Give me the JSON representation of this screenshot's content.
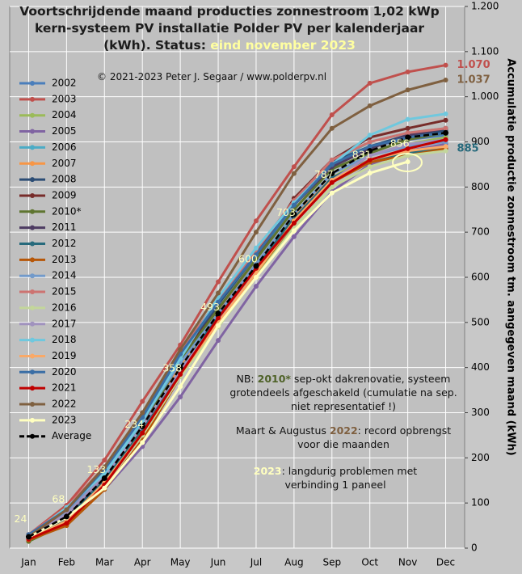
{
  "chart_data": {
    "type": "line",
    "title": "Voortschrijdende maand producties zonnestroom 1,02 kWp kern-systeem PV installatie Polder PV per kalenderjaar (kWh). Status:",
    "status": "eind november 2023",
    "copyright": "© 2021-2023 Peter J. Segaar / www.polderpv.nl",
    "y_axis_label": "Accumulatie productie zonnestroom tm. aangegeven maand (kWh)",
    "y_axis_side": "right",
    "notes": [
      [
        "NB: ",
        "2010*",
        " sep-okt dakrenovatie, systeem grotendeels afgeschakeld (cumulatie na sep. niet representatief !)"
      ],
      [
        "Maart & Augustus ",
        "2022",
        ": record opbrengst voor die maanden"
      ],
      [
        "2023",
        ": langdurig problemen met verbinding 1 paneel"
      ]
    ],
    "categories": [
      "Jan",
      "Feb",
      "Mar",
      "Apr",
      "May",
      "Jun",
      "Jul",
      "Aug",
      "Sep",
      "Oct",
      "Nov",
      "Dec"
    ],
    "ylim": [
      0,
      1200
    ],
    "yticks": [
      0,
      100,
      200,
      300,
      400,
      500,
      600,
      700,
      800,
      900,
      {
        "value": 1000,
        "label": "1.000"
      },
      {
        "value": 1100,
        "label": "1.100"
      },
      {
        "value": 1200,
        "label": "1.200"
      }
    ],
    "grid": true,
    "series": [
      {
        "name": "2002",
        "color": "#4a7ebb",
        "values": [
          22,
          60,
          150,
          280,
          410,
          530,
          640,
          760,
          850,
          890,
          905,
          915
        ]
      },
      {
        "name": "2003",
        "color": "#c0504d",
        "values": [
          30,
          95,
          195,
          325,
          450,
          590,
          725,
          845,
          960,
          1030,
          1055,
          1070
        ],
        "value_labels": [
          null,
          null,
          null,
          null,
          null,
          null,
          null,
          null,
          null,
          null,
          null,
          "1.070"
        ]
      },
      {
        "name": "2004",
        "color": "#9bbb59",
        "values": [
          15,
          55,
          140,
          260,
          390,
          500,
          600,
          720,
          820,
          870,
          895,
          910
        ]
      },
      {
        "name": "2005",
        "color": "#8064a2",
        "values": [
          20,
          60,
          130,
          225,
          335,
          460,
          580,
          690,
          790,
          850,
          880,
          895
        ]
      },
      {
        "name": "2006",
        "color": "#4bacc6",
        "values": [
          25,
          85,
          175,
          290,
          420,
          540,
          650,
          760,
          855,
          900,
          920,
          930
        ]
      },
      {
        "name": "2007",
        "color": "#f79646",
        "values": [
          25,
          75,
          165,
          275,
          405,
          525,
          630,
          735,
          820,
          860,
          875,
          885
        ]
      },
      {
        "name": "2008",
        "color": "#2c4d75",
        "values": [
          25,
          70,
          160,
          275,
          420,
          540,
          650,
          770,
          855,
          890,
          915,
          925
        ]
      },
      {
        "name": "2009",
        "color": "#772c2a",
        "values": [
          28,
          80,
          160,
          275,
          420,
          530,
          640,
          775,
          860,
          910,
          930,
          948
        ]
      },
      {
        "name": "2010*",
        "color": "#5f7530",
        "values": [
          15,
          55,
          140,
          265,
          415,
          530,
          640,
          750,
          840,
          875,
          905,
          920
        ]
      },
      {
        "name": "2011",
        "color": "#4d3b62",
        "values": [
          25,
          70,
          160,
          280,
          430,
          545,
          655,
          760,
          845,
          885,
          915,
          930
        ]
      },
      {
        "name": "2012",
        "color": "#276a7c",
        "values": [
          22,
          65,
          150,
          260,
          395,
          515,
          625,
          730,
          820,
          860,
          875,
          885
        ],
        "label_last": true
      },
      {
        "name": "2013",
        "color": "#b65708",
        "values": [
          18,
          50,
          130,
          240,
          380,
          500,
          610,
          720,
          810,
          855,
          870,
          885
        ]
      },
      {
        "name": "2014",
        "color": "#729aca",
        "values": [
          28,
          80,
          165,
          285,
          410,
          520,
          630,
          740,
          830,
          870,
          890,
          900
        ]
      },
      {
        "name": "2015",
        "color": "#cd7371",
        "values": [
          30,
          90,
          180,
          300,
          435,
          550,
          660,
          770,
          860,
          900,
          920,
          930
        ]
      },
      {
        "name": "2016",
        "color": "#c3d69b",
        "values": [
          20,
          60,
          140,
          250,
          380,
          490,
          600,
          710,
          800,
          845,
          870,
          880
        ]
      },
      {
        "name": "2017",
        "color": "#a092be",
        "values": [
          25,
          75,
          160,
          270,
          395,
          505,
          615,
          720,
          815,
          870,
          895,
          905
        ]
      },
      {
        "name": "2018",
        "color": "#6fc8de",
        "values": [
          25,
          90,
          165,
          280,
          420,
          555,
          665,
          765,
          850,
          915,
          950,
          962
        ]
      },
      {
        "name": "2019",
        "color": "#f9a968",
        "values": [
          20,
          60,
          145,
          255,
          385,
          500,
          610,
          725,
          815,
          860,
          880,
          890
        ]
      },
      {
        "name": "2020",
        "color": "#3a6ea5",
        "values": [
          30,
          85,
          175,
          290,
          430,
          545,
          650,
          760,
          850,
          890,
          910,
          920
        ]
      },
      {
        "name": "2021",
        "color": "#c00000",
        "values": [
          20,
          55,
          140,
          255,
          385,
          510,
          620,
          720,
          810,
          860,
          885,
          905
        ]
      },
      {
        "name": "2022",
        "color": "#7f6040",
        "values": [
          25,
          85,
          180,
          300,
          440,
          565,
          700,
          830,
          930,
          980,
          1015,
          1037
        ],
        "value_labels": [
          null,
          null,
          null,
          null,
          null,
          null,
          null,
          null,
          null,
          null,
          null,
          "1.037"
        ]
      },
      {
        "name": "2023",
        "color": "#ffffc0",
        "values": [
          24,
          68,
          133,
          234,
          358,
          493,
          600,
          703,
          787,
          831,
          856,
          null
        ],
        "show_values": true
      },
      {
        "name": "Average",
        "color": "#000000",
        "dashed": true,
        "values": [
          25,
          70,
          155,
          270,
          400,
          520,
          625,
          740,
          830,
          880,
          910,
          920
        ]
      }
    ]
  }
}
